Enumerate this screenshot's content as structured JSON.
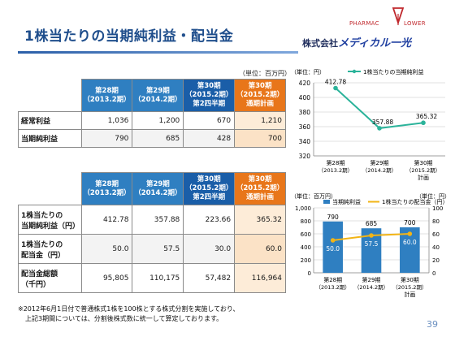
{
  "title": "1株当たりの当期純利益・配当金",
  "logo": {
    "left": "PHARMAC",
    "right": "LOWER",
    "mark_color": "#c0282d"
  },
  "company": {
    "prefix": "株式会社",
    "brand": "メディカル一光"
  },
  "unit_top": "（単位：百万円）",
  "table1": {
    "headers": [
      {
        "line1": "第28期",
        "line2": "（2013.2期）"
      },
      {
        "line1": "第29期",
        "line2": "（2014.2期）"
      },
      {
        "line1": "第30期",
        "line2": "（2015.2期）",
        "line3": "第2四半期"
      },
      {
        "line1": "第30期",
        "line2": "（2015.2期）",
        "line3": "通期計画"
      }
    ],
    "rows": [
      {
        "label": "経常利益",
        "values": [
          "1,036",
          "1,200",
          "670",
          "1,210"
        ]
      },
      {
        "label": "当期純利益",
        "values": [
          "790",
          "685",
          "428",
          "700"
        ]
      }
    ]
  },
  "table2": {
    "headers": [
      {
        "line1": "第28期",
        "line2": "（2013.2期）"
      },
      {
        "line1": "第29期",
        "line2": "（2014.2期）"
      },
      {
        "line1": "第30期",
        "line2": "（2015.2期）",
        "line3": "第2四半期"
      },
      {
        "line1": "第30期",
        "line2": "（2015.2期）",
        "line3": "通期計画"
      }
    ],
    "rows": [
      {
        "label1": "1株当たりの",
        "label2": "当期純利益（円）",
        "values": [
          "412.78",
          "357.88",
          "223.66",
          "365.32"
        ]
      },
      {
        "label1": "1株当たりの",
        "label2": "配当金（円）",
        "values": [
          "50.0",
          "57.5",
          "30.0",
          "60.0"
        ]
      },
      {
        "label1": "配当金総額",
        "label2": "（千円）",
        "values": [
          "95,805",
          "110,175",
          "57,482",
          "116,964"
        ]
      }
    ]
  },
  "footnote": {
    "line1": "※2012年6月1日付で普通株式1株を100株とする株式分割を実施しており、",
    "line2": "上記3期間については、分割後株式数に統一して算定しております。"
  },
  "page_number": "39",
  "chart_data": [
    {
      "type": "line",
      "unit_label": "（単位：円）",
      "categories": [
        {
          "line1": "第28期",
          "line2": "（2013.2期）"
        },
        {
          "line1": "第29期",
          "line2": "（2014.2期）"
        },
        {
          "line1": "第30期",
          "line2": "（2015.2期）",
          "line3": "計画"
        }
      ],
      "series": [
        {
          "name": "1株当たりの当期純利益",
          "values": [
            412.78,
            357.88,
            365.32
          ],
          "labels": [
            "412.78",
            "357.88",
            "365.32"
          ],
          "color": "#2bb39a"
        }
      ],
      "ylim": [
        320,
        420
      ],
      "yticks": [
        320,
        340,
        360,
        380,
        400,
        420
      ],
      "grid": true,
      "legend": "top"
    },
    {
      "type": "bar",
      "unit_left": "（単位：百万円）",
      "unit_right": "（単位：円）",
      "categories": [
        {
          "line1": "第28期",
          "line2": "（2013.2期）"
        },
        {
          "line1": "第29期",
          "line2": "（2014.2期）"
        },
        {
          "line1": "第30期",
          "line2": "（2015.2期）",
          "line3": "計画"
        }
      ],
      "series": [
        {
          "name": "当期純利益",
          "kind": "bar",
          "axis": "left",
          "values": [
            790,
            685,
            700
          ],
          "labels": [
            "790",
            "685",
            "700"
          ],
          "color": "#2f7fc1"
        },
        {
          "name": "1株当たりの配当金（円）",
          "kind": "line",
          "axis": "right",
          "values": [
            50.0,
            57.5,
            60.0
          ],
          "labels": [
            "50.0",
            "57.5",
            "60.0"
          ],
          "color": "#f2b416"
        }
      ],
      "ylim_left": [
        0,
        1000
      ],
      "yticks_left": [
        "0",
        "200",
        "400",
        "600",
        "800",
        "1,000"
      ],
      "ylim_right": [
        0,
        100
      ],
      "yticks_right": [
        "0",
        "20",
        "40",
        "60",
        "80",
        "100"
      ],
      "grid": true,
      "legend": "top"
    }
  ]
}
